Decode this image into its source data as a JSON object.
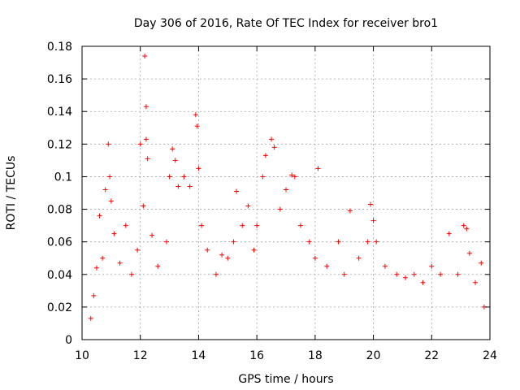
{
  "chart_data": {
    "type": "scatter",
    "title": "Day 306 of 2016, Rate Of TEC Index for receiver bro1",
    "xlabel": "GPS time / hours",
    "ylabel": "ROTI / TECUs",
    "xlim": [
      10,
      24
    ],
    "ylim": [
      0,
      0.18
    ],
    "x_ticks": [
      "10",
      "12",
      "14",
      "16",
      "18",
      "20",
      "22",
      "24"
    ],
    "y_ticks": [
      "0",
      "0.02",
      "0.04",
      "0.06",
      "0.08",
      "0.1",
      "0.12",
      "0.14",
      "0.16",
      "0.18"
    ],
    "grid": true,
    "marker": "plus",
    "series": [
      {
        "color": "#ff0000",
        "points": [
          [
            10.3,
            0.013
          ],
          [
            10.4,
            0.027
          ],
          [
            10.5,
            0.044
          ],
          [
            10.6,
            0.076
          ],
          [
            10.7,
            0.05
          ],
          [
            10.8,
            0.092
          ],
          [
            10.9,
            0.12
          ],
          [
            10.95,
            0.1
          ],
          [
            11.0,
            0.085
          ],
          [
            11.1,
            0.065
          ],
          [
            11.3,
            0.047
          ],
          [
            11.5,
            0.07
          ],
          [
            11.7,
            0.04
          ],
          [
            11.9,
            0.055
          ],
          [
            12.0,
            0.12
          ],
          [
            12.1,
            0.082
          ],
          [
            12.15,
            0.174
          ],
          [
            12.2,
            0.143
          ],
          [
            12.2,
            0.123
          ],
          [
            12.25,
            0.111
          ],
          [
            12.4,
            0.064
          ],
          [
            12.6,
            0.045
          ],
          [
            12.9,
            0.06
          ],
          [
            13.0,
            0.1
          ],
          [
            13.1,
            0.117
          ],
          [
            13.2,
            0.11
          ],
          [
            13.3,
            0.094
          ],
          [
            13.5,
            0.1
          ],
          [
            13.7,
            0.094
          ],
          [
            13.9,
            0.138
          ],
          [
            13.95,
            0.131
          ],
          [
            14.0,
            0.105
          ],
          [
            14.1,
            0.07
          ],
          [
            14.3,
            0.055
          ],
          [
            14.6,
            0.04
          ],
          [
            14.8,
            0.052
          ],
          [
            15.0,
            0.05
          ],
          [
            15.2,
            0.06
          ],
          [
            15.3,
            0.091
          ],
          [
            15.5,
            0.07
          ],
          [
            15.7,
            0.082
          ],
          [
            15.9,
            0.055
          ],
          [
            16.0,
            0.07
          ],
          [
            16.2,
            0.1
          ],
          [
            16.3,
            0.113
          ],
          [
            16.5,
            0.123
          ],
          [
            16.6,
            0.118
          ],
          [
            16.8,
            0.08
          ],
          [
            17.0,
            0.092
          ],
          [
            17.2,
            0.101
          ],
          [
            17.3,
            0.1
          ],
          [
            17.5,
            0.07
          ],
          [
            17.8,
            0.06
          ],
          [
            18.0,
            0.05
          ],
          [
            18.1,
            0.105
          ],
          [
            18.4,
            0.045
          ],
          [
            18.8,
            0.06
          ],
          [
            19.0,
            0.04
          ],
          [
            19.2,
            0.079
          ],
          [
            19.5,
            0.05
          ],
          [
            19.8,
            0.06
          ],
          [
            19.9,
            0.083
          ],
          [
            20.0,
            0.073
          ],
          [
            20.1,
            0.06
          ],
          [
            20.4,
            0.045
          ],
          [
            20.8,
            0.04
          ],
          [
            21.1,
            0.038
          ],
          [
            21.4,
            0.04
          ],
          [
            21.7,
            0.035
          ],
          [
            22.0,
            0.045
          ],
          [
            22.3,
            0.04
          ],
          [
            22.6,
            0.065
          ],
          [
            22.9,
            0.04
          ],
          [
            23.1,
            0.07
          ],
          [
            23.2,
            0.068
          ],
          [
            23.3,
            0.053
          ],
          [
            23.5,
            0.035
          ],
          [
            23.7,
            0.047
          ],
          [
            23.8,
            0.02
          ]
        ]
      }
    ]
  }
}
